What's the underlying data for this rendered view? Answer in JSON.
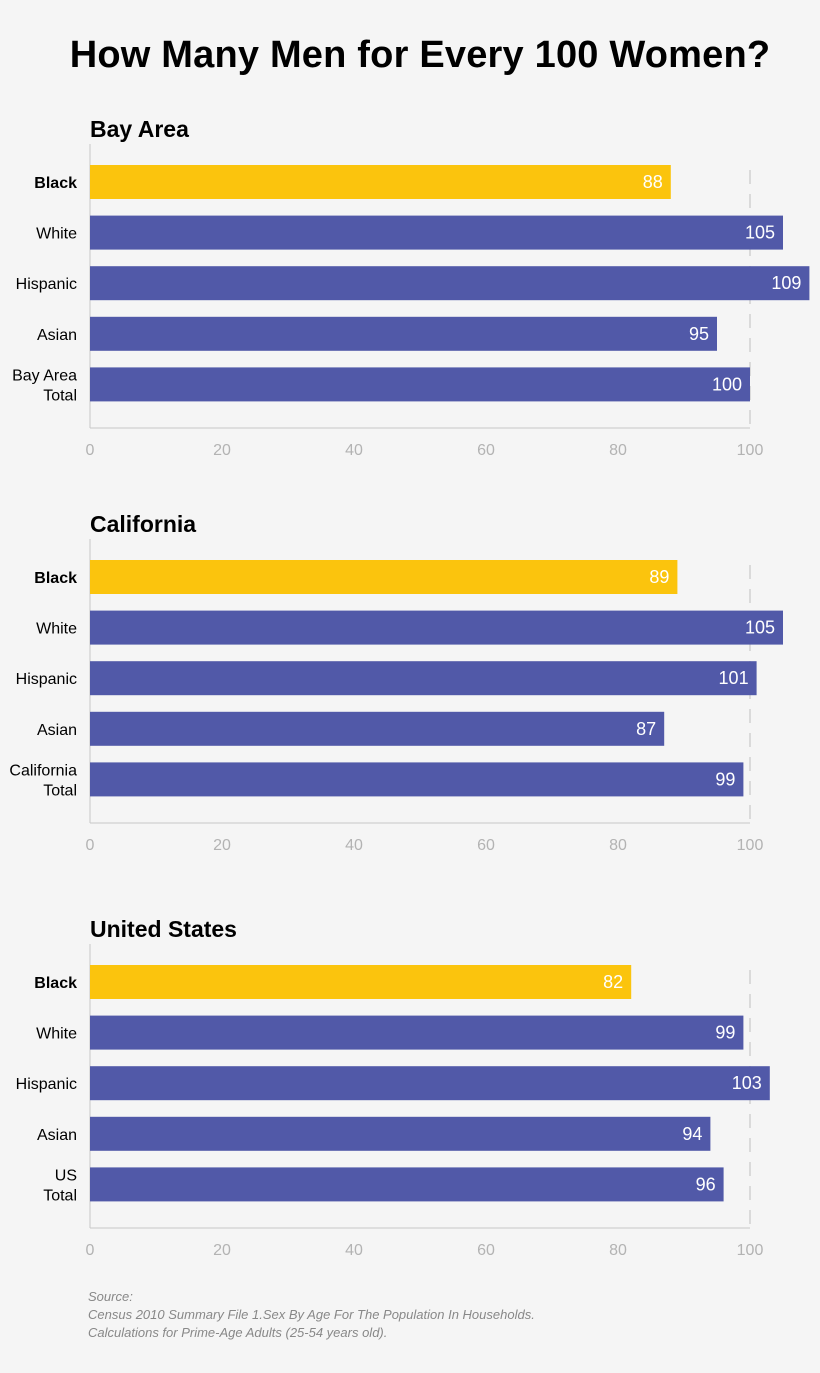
{
  "title": "How Many Men for Every 100 Women?",
  "colors": {
    "highlight": "#fbc40d",
    "bar": "#5159a8",
    "axis": "#c8c8c8",
    "tick_text": "#b3b3b3",
    "value_text": "#ffffff",
    "background": "#f5f5f5"
  },
  "chart_data": [
    {
      "type": "bar",
      "orientation": "horizontal",
      "title": "Bay Area",
      "categories": [
        [
          "Black"
        ],
        [
          "White"
        ],
        [
          "Hispanic"
        ],
        [
          "Asian"
        ],
        [
          "Bay Area",
          "Total"
        ]
      ],
      "values": [
        88,
        105,
        109,
        95,
        100
      ],
      "highlight_index": 0,
      "xlim": [
        0,
        100
      ],
      "xticks": [
        0,
        20,
        40,
        60,
        80,
        100
      ],
      "reference_line": 100
    },
    {
      "type": "bar",
      "orientation": "horizontal",
      "title": "California",
      "categories": [
        [
          "Black"
        ],
        [
          "White"
        ],
        [
          "Hispanic"
        ],
        [
          "Asian"
        ],
        [
          "California",
          "Total"
        ]
      ],
      "values": [
        89,
        105,
        101,
        87,
        99
      ],
      "highlight_index": 0,
      "xlim": [
        0,
        100
      ],
      "xticks": [
        0,
        20,
        40,
        60,
        80,
        100
      ],
      "reference_line": 100
    },
    {
      "type": "bar",
      "orientation": "horizontal",
      "title": "United States",
      "categories": [
        [
          "Black"
        ],
        [
          "White"
        ],
        [
          "Hispanic"
        ],
        [
          "Asian"
        ],
        [
          "US",
          "Total"
        ]
      ],
      "values": [
        82,
        99,
        103,
        94,
        96
      ],
      "highlight_index": 0,
      "xlim": [
        0,
        100
      ],
      "xticks": [
        0,
        20,
        40,
        60,
        80,
        100
      ],
      "reference_line": 100
    }
  ],
  "source": {
    "heading": "Source:",
    "line1": "Census 2010 Summary File 1.Sex By Age For The Population In Households.",
    "line2": "Calculations for Prime-Age Adults (25-54 years old)."
  }
}
